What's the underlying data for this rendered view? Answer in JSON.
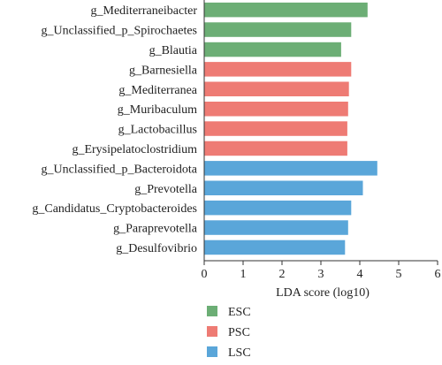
{
  "chart_data": {
    "type": "bar",
    "orientation": "horizontal",
    "categories": [
      "g_Mediterraneibacter",
      "g_Unclassified_p_Spirochaetes",
      "g_Blautia",
      "g_Barnesiella",
      "g_Mediterranea",
      "g_Muribaculum",
      "g_Lactobacillus",
      "g_Erysipelatoclostridium",
      "g_Unclassified_p_Bacteroidota",
      "g_Prevotella",
      "g_Candidatus_Cryptobacteroides",
      "g_Paraprevotella",
      "g_Desulfovibrio"
    ],
    "values": [
      4.2,
      3.78,
      3.52,
      3.78,
      3.72,
      3.7,
      3.68,
      3.68,
      4.45,
      4.08,
      3.78,
      3.7,
      3.62
    ],
    "groups": [
      "ESC",
      "ESC",
      "ESC",
      "PSC",
      "PSC",
      "PSC",
      "PSC",
      "PSC",
      "LSC",
      "LSC",
      "LSC",
      "LSC",
      "LSC"
    ],
    "xlabel": "LDA score (log10)",
    "xlim": [
      0,
      6
    ],
    "xticks": [
      "0",
      "1",
      "2",
      "3",
      "4",
      "5",
      "6"
    ],
    "grid": false,
    "legend": {
      "placement": "bottom-left",
      "entries": [
        {
          "name": "ESC",
          "color": "#6cae75"
        },
        {
          "name": "PSC",
          "color": "#ee7b74"
        },
        {
          "name": "LSC",
          "color": "#5aa6d9"
        }
      ]
    }
  }
}
